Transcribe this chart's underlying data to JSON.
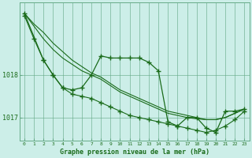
{
  "bg_color": "#cceee8",
  "grid_color": "#66aa88",
  "line_color": "#1a6b1a",
  "xlabel": "Graphe pression niveau de la mer (hPa)",
  "xlim": [
    -0.5,
    23.5
  ],
  "ylim": [
    1016.45,
    1019.7
  ],
  "yticks": [
    1017.0,
    1018.0
  ],
  "xticks": [
    0,
    1,
    2,
    3,
    4,
    5,
    6,
    7,
    8,
    9,
    10,
    11,
    12,
    13,
    14,
    15,
    16,
    17,
    18,
    19,
    20,
    21,
    22,
    23
  ],
  "line1_x": [
    0,
    1,
    2,
    3,
    4,
    5,
    6,
    7,
    8,
    9,
    10,
    11,
    12,
    13,
    14,
    15,
    16,
    17,
    18,
    19,
    20,
    21,
    22,
    23
  ],
  "line1_y": [
    1019.45,
    1019.2,
    1019.0,
    1018.75,
    1018.55,
    1018.35,
    1018.2,
    1018.05,
    1017.95,
    1017.8,
    1017.65,
    1017.55,
    1017.45,
    1017.35,
    1017.25,
    1017.15,
    1017.1,
    1017.05,
    1017.0,
    1016.95,
    1016.95,
    1017.0,
    1017.1,
    1017.2
  ],
  "line2_x": [
    0,
    1,
    2,
    3,
    4,
    5,
    6,
    7,
    8,
    9,
    10,
    11,
    12,
    13,
    14,
    15,
    16,
    17,
    18,
    19,
    20,
    21,
    22,
    23
  ],
  "line2_y": [
    1019.45,
    1019.15,
    1018.85,
    1018.6,
    1018.4,
    1018.25,
    1018.1,
    1018.0,
    1017.9,
    1017.75,
    1017.6,
    1017.5,
    1017.4,
    1017.3,
    1017.2,
    1017.1,
    1017.05,
    1017.0,
    1016.97,
    1016.95,
    1016.95,
    1017.0,
    1017.1,
    1017.2
  ],
  "line3_x": [
    0,
    2,
    3,
    4,
    5,
    6,
    7,
    8,
    9,
    10,
    11,
    12,
    13,
    14,
    15,
    16,
    17,
    18,
    19,
    20,
    21,
    22,
    23
  ],
  "line3_y": [
    1019.45,
    1018.35,
    1018.0,
    1017.7,
    1017.65,
    1017.7,
    1018.0,
    1018.45,
    1018.4,
    1018.4,
    1018.4,
    1018.4,
    1018.3,
    1018.1,
    1016.9,
    1016.8,
    1017.0,
    1017.0,
    1016.75,
    1016.65,
    1017.15,
    1017.15,
    1017.2
  ],
  "line4_x": [
    0,
    1,
    2,
    3,
    4,
    5,
    6,
    7,
    8,
    9,
    10,
    11,
    12,
    13,
    14,
    15,
    16,
    17,
    18,
    19,
    20,
    21,
    22,
    23
  ],
  "line4_y": [
    1019.4,
    1018.85,
    1018.35,
    1018.0,
    1017.7,
    1017.55,
    1017.5,
    1017.45,
    1017.35,
    1017.25,
    1017.15,
    1017.05,
    1017.0,
    1016.95,
    1016.9,
    1016.85,
    1016.8,
    1016.75,
    1016.7,
    1016.65,
    1016.7,
    1016.8,
    1016.95,
    1017.15
  ]
}
